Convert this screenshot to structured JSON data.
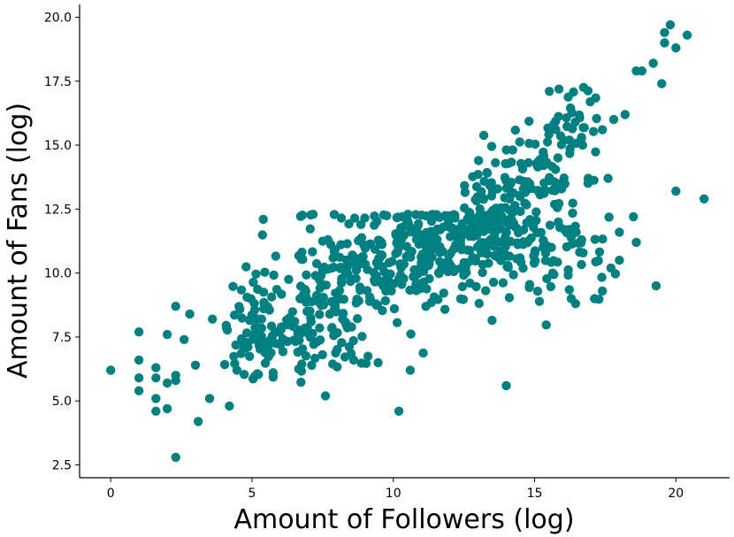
{
  "chart_data": {
    "type": "scatter",
    "xlabel": "Amount of Followers (log)",
    "ylabel": "Amount of Fans (log)",
    "xlim": [
      -1.1,
      21.9
    ],
    "ylim": [
      2.0,
      20.5
    ],
    "x_ticks": [
      0,
      5,
      10,
      15,
      20
    ],
    "y_ticks": [
      2.5,
      5.0,
      7.5,
      10.0,
      12.5,
      15.0,
      17.5,
      20.0
    ],
    "x_tick_labels": [
      "0",
      "5",
      "10",
      "15",
      "20"
    ],
    "y_tick_labels": [
      "2.5",
      "5.0",
      "7.5",
      "10.0",
      "12.5",
      "15.0",
      "17.5",
      "20.0"
    ],
    "grid": false,
    "marker_color": "#008080",
    "outliers": [
      {
        "x": 0.0,
        "y": 6.2
      },
      {
        "x": 1.0,
        "y": 7.7
      },
      {
        "x": 1.0,
        "y": 6.6
      },
      {
        "x": 1.0,
        "y": 5.9
      },
      {
        "x": 1.0,
        "y": 5.4
      },
      {
        "x": 1.6,
        "y": 6.3
      },
      {
        "x": 1.6,
        "y": 5.9
      },
      {
        "x": 1.6,
        "y": 5.1
      },
      {
        "x": 1.6,
        "y": 4.6
      },
      {
        "x": 2.0,
        "y": 4.7
      },
      {
        "x": 2.0,
        "y": 5.7
      },
      {
        "x": 2.0,
        "y": 7.6
      },
      {
        "x": 2.3,
        "y": 2.8
      },
      {
        "x": 2.3,
        "y": 8.7
      },
      {
        "x": 2.3,
        "y": 5.8
      },
      {
        "x": 2.3,
        "y": 6.0
      },
      {
        "x": 2.6,
        "y": 7.4
      },
      {
        "x": 2.8,
        "y": 8.4
      },
      {
        "x": 3.0,
        "y": 6.4
      },
      {
        "x": 3.1,
        "y": 4.2
      },
      {
        "x": 3.5,
        "y": 5.1
      },
      {
        "x": 3.6,
        "y": 8.2
      },
      {
        "x": 4.2,
        "y": 4.8
      },
      {
        "x": 5.4,
        "y": 12.1
      },
      {
        "x": 7.6,
        "y": 5.2
      },
      {
        "x": 8.6,
        "y": 6.6
      },
      {
        "x": 10.2,
        "y": 4.6
      },
      {
        "x": 10.6,
        "y": 6.2
      },
      {
        "x": 14.0,
        "y": 5.6
      },
      {
        "x": 19.3,
        "y": 9.5
      },
      {
        "x": 20.0,
        "y": 13.2
      },
      {
        "x": 21.0,
        "y": 12.9
      },
      {
        "x": 19.5,
        "y": 17.4
      },
      {
        "x": 19.6,
        "y": 19.4
      },
      {
        "x": 19.6,
        "y": 19.0
      },
      {
        "x": 19.8,
        "y": 19.7
      },
      {
        "x": 20.0,
        "y": 18.8
      },
      {
        "x": 20.4,
        "y": 19.3
      },
      {
        "x": 19.2,
        "y": 18.2
      },
      {
        "x": 18.6,
        "y": 17.9
      },
      {
        "x": 18.8,
        "y": 17.9
      },
      {
        "x": 18.2,
        "y": 16.2
      },
      {
        "x": 17.8,
        "y": 16.0
      },
      {
        "x": 17.6,
        "y": 13.7
      },
      {
        "x": 16.9,
        "y": 13.7
      },
      {
        "x": 17.4,
        "y": 15.6
      },
      {
        "x": 16.7,
        "y": 15.0
      },
      {
        "x": 17.4,
        "y": 9.3
      },
      {
        "x": 18.6,
        "y": 11.2
      },
      {
        "x": 18.5,
        "y": 12.2
      },
      {
        "x": 18.0,
        "y": 10.5
      },
      {
        "x": 17.7,
        "y": 10.2
      },
      {
        "x": 18.0,
        "y": 11.6
      }
    ],
    "clusters": [
      {
        "cx": 5.5,
        "cy": 7.6,
        "sx": 1.3,
        "sy": 1.0,
        "n": 130
      },
      {
        "cx": 8.2,
        "cy": 9.4,
        "sx": 1.4,
        "sy": 1.4,
        "n": 170
      },
      {
        "cx": 11.0,
        "cy": 10.8,
        "sx": 1.4,
        "sy": 1.0,
        "n": 200
      },
      {
        "cx": 13.5,
        "cy": 11.5,
        "sx": 1.0,
        "sy": 1.1,
        "n": 130
      },
      {
        "cx": 14.8,
        "cy": 13.8,
        "sx": 1.0,
        "sy": 1.0,
        "n": 90
      },
      {
        "cx": 15.8,
        "cy": 10.8,
        "sx": 1.2,
        "sy": 1.0,
        "n": 60
      },
      {
        "cx": 16.5,
        "cy": 15.8,
        "sx": 0.8,
        "sy": 0.8,
        "n": 35
      }
    ],
    "cap_y": 12.3
  }
}
